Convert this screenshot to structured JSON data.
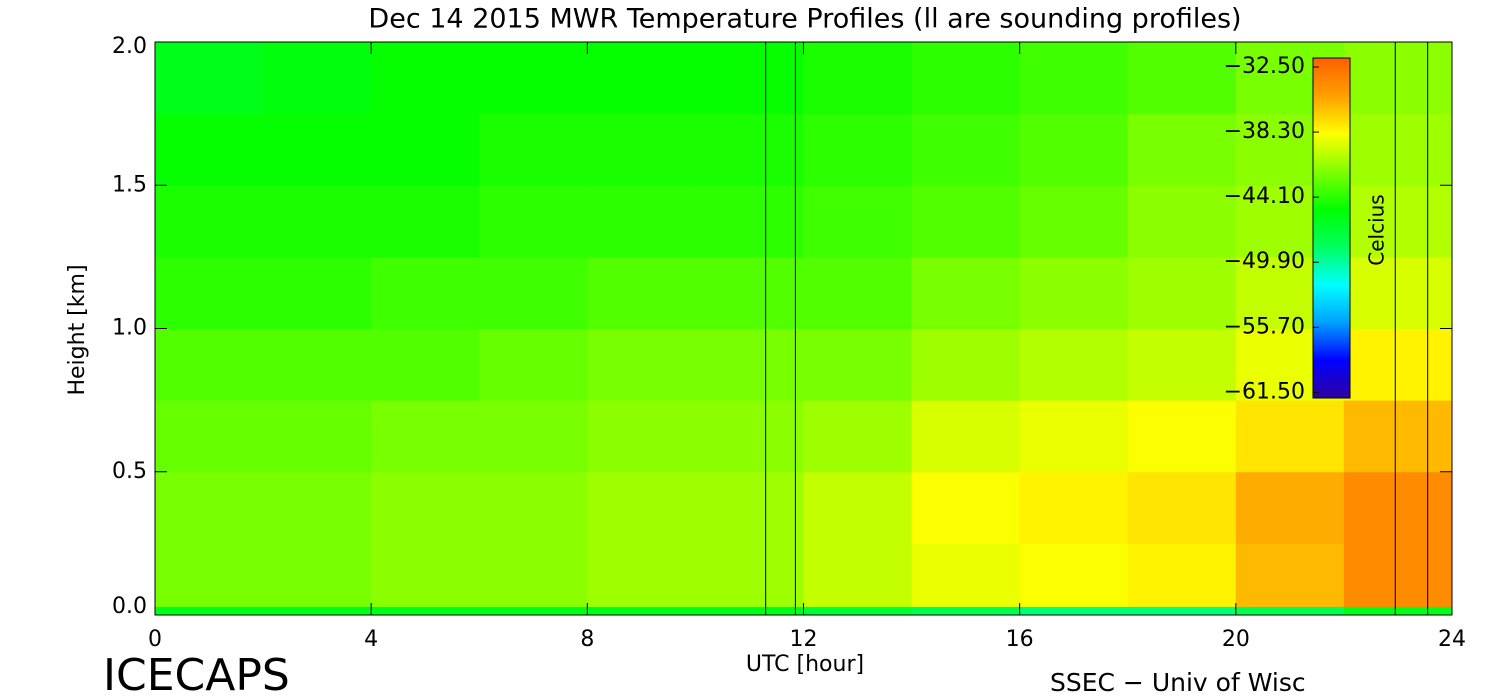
{
  "chart_data": {
    "type": "heatmap",
    "title": "Dec 14 2015 MWR Temperature Profiles (ll are sounding profiles)",
    "x_label": "UTC [hour]",
    "y_label": "Height [km]",
    "colorbar_label": "Celcius",
    "footer_left": "ICECAPS",
    "footer_right": "SSEC − Univ of Wisc",
    "xlim": [
      0,
      24
    ],
    "xticks": [
      0,
      4,
      8,
      12,
      16,
      20,
      24
    ],
    "ylim": [
      0,
      2
    ],
    "yticks": [
      {
        "value": 0,
        "label": "0.0"
      },
      {
        "value": 0.5,
        "label": "0.5"
      },
      {
        "value": 1,
        "label": "1.0"
      },
      {
        "value": 1.5,
        "label": "1.5"
      },
      {
        "value": 2,
        "label": "2.0"
      }
    ],
    "x_edges": [
      0,
      2,
      4,
      6,
      8,
      10,
      12,
      14,
      16,
      18,
      20,
      22,
      24
    ],
    "y_edges": [
      0,
      0.03,
      0.25,
      0.5,
      0.75,
      1,
      1.25,
      1.5,
      1.75,
      2
    ],
    "z": [
      [
        -46,
        -46,
        -46,
        -46,
        -46,
        -46,
        -47,
        -48,
        -49,
        -49,
        -48,
        -46
      ],
      [
        -42,
        -42,
        -41.5,
        -41.5,
        -41,
        -41,
        -40,
        -39,
        -38.5,
        -38,
        -36,
        -34
      ],
      [
        -42,
        -42,
        -41.5,
        -41.5,
        -41,
        -41,
        -40,
        -38.5,
        -38,
        -37.5,
        -35.5,
        -34
      ],
      [
        -42.5,
        -42.5,
        -42,
        -42,
        -41.5,
        -41.5,
        -41,
        -39.5,
        -39,
        -38.5,
        -37.5,
        -36
      ],
      [
        -43,
        -43,
        -43,
        -42.5,
        -42,
        -42,
        -42,
        -41,
        -40.5,
        -40,
        -39,
        -38
      ],
      [
        -44,
        -44,
        -43.5,
        -43.5,
        -43,
        -43,
        -43,
        -42,
        -41.5,
        -41,
        -40,
        -39.5
      ],
      [
        -44.5,
        -44.5,
        -44.5,
        -44,
        -44,
        -44,
        -43.5,
        -43,
        -42.5,
        -41.5,
        -41,
        -40.5
      ],
      [
        -45,
        -45,
        -45,
        -44.5,
        -44.5,
        -44.5,
        -44,
        -43.5,
        -43,
        -42,
        -41.5,
        -41
      ],
      [
        -46,
        -45.5,
        -45,
        -45,
        -45,
        -45,
        -44.5,
        -44,
        -43.5,
        -43,
        -42,
        -41.5
      ]
    ],
    "clim": [
      -62,
      -31.7
    ],
    "colorbar_ticks": [
      {
        "value": -32.5,
        "label": "−32.50"
      },
      {
        "value": -38.3,
        "label": "−38.30"
      },
      {
        "value": -44.1,
        "label": "−44.10"
      },
      {
        "value": -49.9,
        "label": "−49.90"
      },
      {
        "value": -55.7,
        "label": "−55.70"
      },
      {
        "value": -61.5,
        "label": "−61.50"
      }
    ],
    "colormap": [
      "#3000a0",
      "#0000ff",
      "#00a0ff",
      "#00ffff",
      "#00ff60",
      "#00ff00",
      "#80ff00",
      "#ffff00",
      "#ffa000",
      "#ff6000"
    ],
    "sounding_times": [
      11.3,
      11.85,
      22.95,
      23.55
    ]
  }
}
